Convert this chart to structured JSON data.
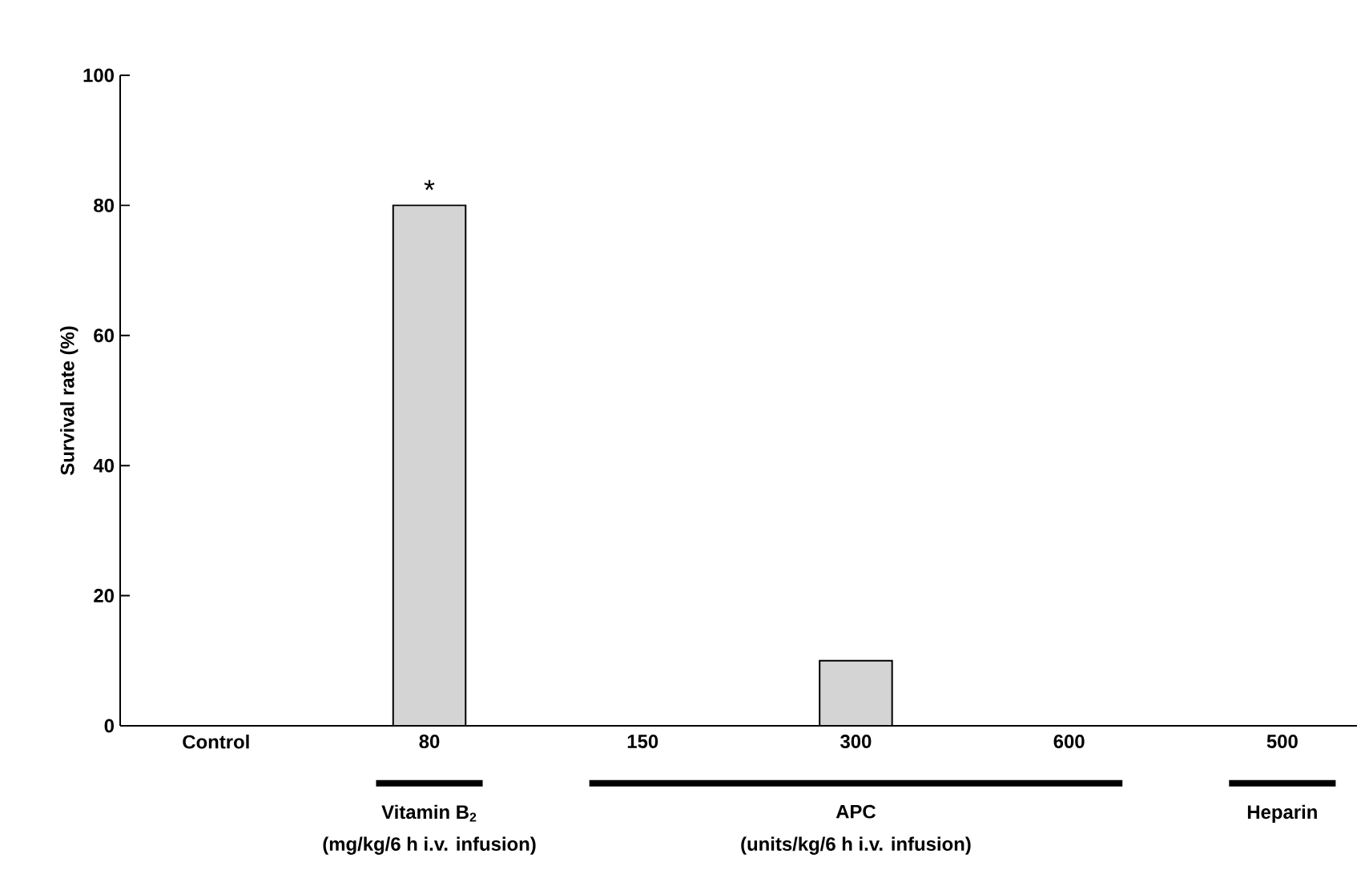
{
  "chart_data": {
    "type": "bar",
    "categories": [
      "Control",
      "80",
      "150",
      "300",
      "600",
      "500"
    ],
    "values": [
      0,
      80,
      0,
      10,
      0,
      0
    ],
    "color": "#d4d4d4",
    "ylabel": "Survival rate (%)",
    "ylim": [
      0,
      100
    ],
    "yticks": [
      0,
      20,
      40,
      60,
      80,
      100
    ],
    "annotations": [
      {
        "text": "*",
        "x": "80",
        "y": 80
      },
      "Vitamin B$_{2}$",
      "(mg/kg/6 h i.v. infusion)",
      "APC",
      "(units/kg/6 h i.v. infusion)",
      "Heparin"
    ]
  }
}
